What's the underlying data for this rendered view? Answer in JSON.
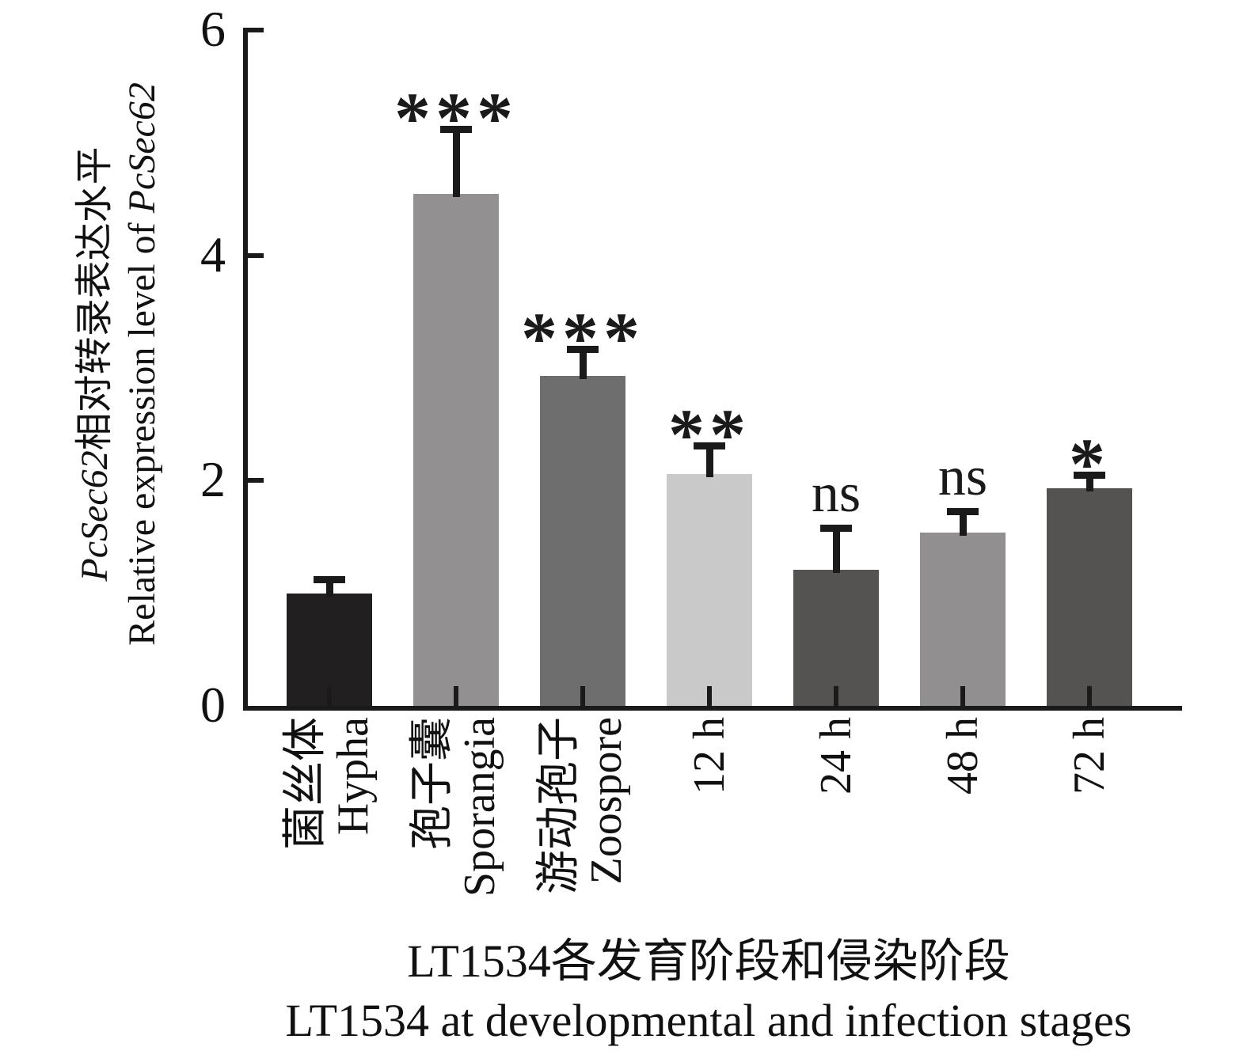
{
  "figure": {
    "ylabel_zh": {
      "italic": "PcSec62",
      "text": "相对转录表达水平"
    },
    "ylabel_en": {
      "text": "Relative expression level of ",
      "italic": "PcSec62"
    },
    "xlabel_zh": "LT1534各发育阶段和侵染阶段",
    "xlabel_en": "LT1534 at developmental and infection stages"
  },
  "chart_data": {
    "type": "bar",
    "title": "",
    "xlabel": "LT1534各发育阶段和侵染阶段 / LT1534 at developmental and infection stages",
    "ylabel": "PcSec62相对转录表达水平 / Relative expression level of PcSec62",
    "categories": [
      "菌丝体 Hypha",
      "孢子囊 Sporangia",
      "游动孢子 Zoospore",
      "12 h",
      "24 h",
      "48 h",
      "72 h"
    ],
    "category_labels": [
      {
        "lines": [
          "菌丝体",
          "Hypha"
        ]
      },
      {
        "lines": [
          "孢子囊",
          "Sporangia"
        ]
      },
      {
        "lines": [
          "游动孢子",
          "Zoospore"
        ]
      },
      {
        "lines": [
          "12 h"
        ]
      },
      {
        "lines": [
          "24 h"
        ]
      },
      {
        "lines": [
          "48 h"
        ]
      },
      {
        "lines": [
          "72 h"
        ]
      }
    ],
    "values": [
      1.0,
      4.55,
      2.93,
      2.06,
      1.21,
      1.54,
      1.93
    ],
    "errors": [
      0.15,
      0.6,
      0.27,
      0.28,
      0.4,
      0.22,
      0.15
    ],
    "significance": [
      "",
      "***",
      "***",
      "**",
      "ns",
      "ns",
      "*"
    ],
    "bar_colors": [
      "#211f20",
      "#929090",
      "#6e6e6e",
      "#c9c9c9",
      "#555352",
      "#918f90",
      "#555352"
    ],
    "error_bar_color": "#1a1a1a",
    "axis_color": "#1a1a1a",
    "ylim": [
      0,
      6
    ],
    "yticks": [
      0,
      2,
      4,
      6
    ],
    "grid": "off",
    "legend": "none"
  }
}
